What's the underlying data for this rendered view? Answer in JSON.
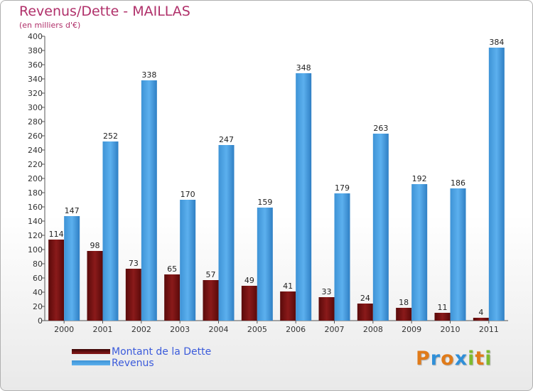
{
  "chart_data": {
    "type": "bar",
    "title": "Revenus/Dette - MAILLAS",
    "subtitle": "(en milliers d'€)",
    "categories": [
      "2000",
      "2001",
      "2002",
      "2003",
      "2004",
      "2005",
      "2006",
      "2007",
      "2008",
      "2009",
      "2010",
      "2011"
    ],
    "series": [
      {
        "name": "Montant de la Dette",
        "color": "#7a1010",
        "values": [
          114,
          98,
          73,
          65,
          57,
          49,
          41,
          33,
          24,
          18,
          11,
          4
        ]
      },
      {
        "name": "Revenus",
        "color": "#4aa3e6",
        "values": [
          147,
          252,
          338,
          170,
          247,
          159,
          348,
          179,
          263,
          192,
          186,
          384
        ]
      }
    ],
    "ylim": [
      0,
      400
    ],
    "ytick_step": 20,
    "grid": false,
    "legend": "bottom-left",
    "xlabel": "",
    "ylabel": ""
  },
  "brand": {
    "text": "Proxiti",
    "letters": [
      {
        "ch": "P",
        "color": "#e07b1a"
      },
      {
        "ch": "r",
        "color": "#2f8fd8"
      },
      {
        "ch": "o",
        "color": "#e07b1a"
      },
      {
        "ch": "x",
        "color": "#2f8fd8"
      },
      {
        "ch": "i",
        "color": "#7dbb2f"
      },
      {
        "ch": "t",
        "color": "#e07b1a"
      },
      {
        "ch": "i",
        "color": "#7dbb2f"
      }
    ]
  }
}
